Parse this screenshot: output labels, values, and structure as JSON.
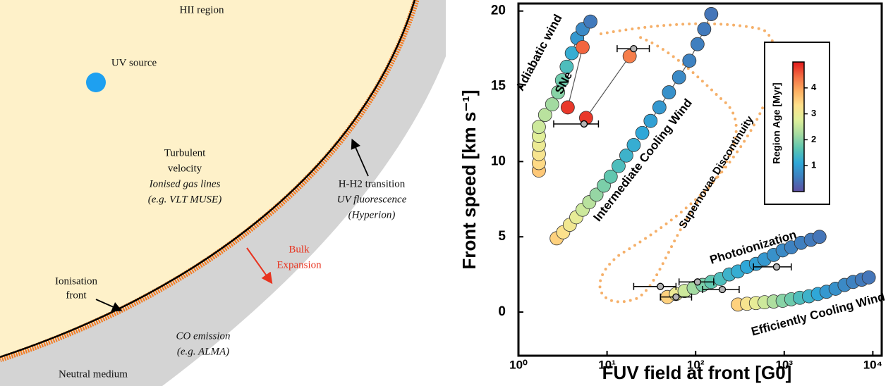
{
  "diagram": {
    "hii_region": "HII region",
    "uv_source": "UV source",
    "turbulent": [
      "Turbulent",
      "velocity",
      "Ionised gas lines",
      "(e.g. VLT MUSE)"
    ],
    "transition": [
      "H-H2 transition",
      "UV fluorescence",
      "(Hyperion)"
    ],
    "bulk": [
      "Bulk",
      "Expansion"
    ],
    "front": [
      "Ionisation",
      "front"
    ],
    "co": [
      "CO emission",
      "(e.g. ALMA)"
    ],
    "neutral": "Neutral medium"
  },
  "chart_data": {
    "type": "scatter",
    "xlabel": "FUV field at front [G0]",
    "ylabel": "Front speed [km s⁻¹]",
    "xscale": "log",
    "xlim": [
      1,
      12600
    ],
    "xticks": [
      {
        "value": 1,
        "label": "10⁰"
      },
      {
        "value": 10,
        "label": "10¹"
      },
      {
        "value": 100,
        "label": "10²"
      },
      {
        "value": 1000,
        "label": "10³"
      },
      {
        "value": 10000,
        "label": "10⁴"
      }
    ],
    "ylim": [
      -2.9,
      20.5
    ],
    "yticks": [
      0,
      5,
      10,
      15,
      20
    ],
    "colorbar": {
      "label": "Region Age [Myr]",
      "clim": [
        0,
        5
      ],
      "ticks": [
        1,
        2,
        3,
        4
      ],
      "colormap": [
        "#5e4fa2",
        "#3f7fbf",
        "#2fa8d8",
        "#5cc6b0",
        "#a6dba0",
        "#e0f09a",
        "#fee08b",
        "#fdae61",
        "#f46d43",
        "#e31a1c"
      ]
    },
    "series": [
      {
        "name": "Adiabatic wind",
        "x": [
          1.7,
          1.7,
          1.7,
          1.7,
          1.7,
          1.7,
          2.0,
          2.4,
          2.8,
          3.1,
          3.5,
          4.0,
          4.6,
          5.3,
          6.5
        ],
        "values": [
          9.4,
          9.9,
          10.5,
          11.1,
          11.7,
          12.3,
          13.1,
          13.8,
          14.6,
          15.4,
          16.3,
          17.2,
          18.2,
          18.8,
          19.3
        ],
        "age": [
          3.6,
          3.4,
          3.2,
          3.0,
          2.8,
          2.6,
          2.4,
          2.2,
          2.0,
          1.8,
          1.5,
          1.2,
          0.9,
          0.7,
          0.5
        ]
      },
      {
        "name": "SNe",
        "x": [
          3.6,
          5.3,
          null,
          5.8,
          18
        ],
        "values": [
          13.6,
          17.6,
          null,
          12.9,
          17.0
        ],
        "age": [
          4.8,
          4.5,
          null,
          4.8,
          4.3
        ]
      },
      {
        "name": "Intermediate Cooling Wind",
        "x": [
          2.7,
          3.2,
          3.8,
          4.5,
          5.3,
          6.3,
          7.6,
          9.2,
          11,
          13.5,
          16.5,
          20,
          25,
          31,
          39,
          50,
          65,
          85,
          105,
          125,
          150
        ],
        "values": [
          4.9,
          5.3,
          5.8,
          6.3,
          6.8,
          7.3,
          7.8,
          8.4,
          9.0,
          9.7,
          10.4,
          11.1,
          11.9,
          12.7,
          13.6,
          14.6,
          15.6,
          16.7,
          17.8,
          18.8,
          19.8
        ],
        "age": [
          3.5,
          3.3,
          3.1,
          2.9,
          2.6,
          2.4,
          2.1,
          1.9,
          1.7,
          1.5,
          1.3,
          1.2,
          1.1,
          1.0,
          0.9,
          0.8,
          0.7,
          0.6,
          0.55,
          0.5,
          0.45
        ]
      },
      {
        "name": "Photoionization",
        "x": [
          48,
          60,
          75,
          95,
          120,
          150,
          190,
          240,
          300,
          380,
          480,
          600,
          760,
          960,
          1200,
          1550,
          2000,
          2500
        ],
        "values": [
          1.0,
          1.2,
          1.4,
          1.6,
          1.8,
          2.0,
          2.2,
          2.5,
          2.7,
          3.0,
          3.2,
          3.5,
          3.8,
          4.1,
          4.3,
          4.6,
          4.8,
          5.0
        ],
        "age": [
          3.5,
          3.0,
          2.6,
          2.2,
          1.9,
          1.7,
          1.5,
          1.3,
          1.2,
          1.1,
          1.0,
          0.9,
          0.8,
          0.7,
          0.6,
          0.55,
          0.5,
          0.45
        ]
      },
      {
        "name": "Efficiently Cooling Wind",
        "x": [
          300,
          380,
          480,
          600,
          760,
          960,
          1200,
          1500,
          1900,
          2400,
          3000,
          3800,
          4800,
          6000,
          7500,
          9000
        ],
        "values": [
          0.5,
          0.55,
          0.6,
          0.65,
          0.7,
          0.75,
          0.85,
          0.95,
          1.05,
          1.2,
          1.35,
          1.55,
          1.8,
          2.0,
          2.15,
          2.3
        ],
        "age": [
          3.5,
          3.2,
          2.9,
          2.6,
          2.3,
          2.0,
          1.8,
          1.5,
          1.3,
          1.1,
          0.9,
          0.8,
          0.7,
          0.6,
          0.5,
          0.45
        ]
      }
    ],
    "observations": {
      "color": "#b4b4b4",
      "x": [
        5.5,
        20,
        820,
        40,
        60,
        105,
        200
      ],
      "values": [
        12.5,
        17.5,
        3.0,
        1.7,
        1.0,
        2.0,
        1.5
      ],
      "xmin": [
        2.5,
        13,
        450,
        20,
        40,
        65,
        120
      ],
      "xmax": [
        8,
        30,
        1200,
        60,
        90,
        160,
        310
      ]
    },
    "annotation": "Supernovae Discontinuity",
    "annotation_color": "#f5b06a"
  }
}
